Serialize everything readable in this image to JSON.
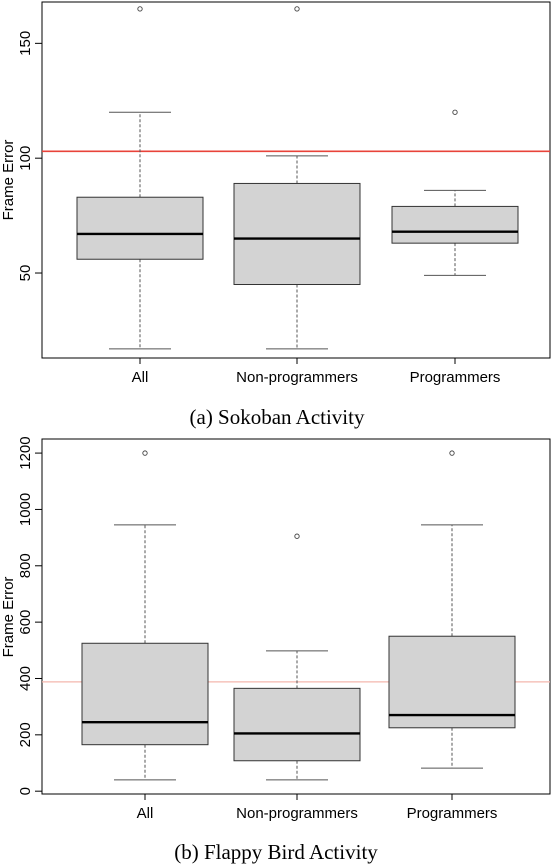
{
  "chart_data": [
    {
      "type": "box",
      "caption": "(a) Sokoban Activity",
      "ylabel": "Frame Error",
      "categories": [
        "All",
        "Non-programmers",
        "Programmers"
      ],
      "ylim": [
        13,
        168
      ],
      "yticks": [
        50,
        100,
        150
      ],
      "boxes": [
        {
          "category": "All",
          "whisker_low": 17,
          "q1": 56,
          "median": 67,
          "q3": 83,
          "whisker_high": 120,
          "outliers": [
            165
          ]
        },
        {
          "category": "Non-programmers",
          "whisker_low": 17,
          "q1": 45,
          "median": 65,
          "q3": 89,
          "whisker_high": 101,
          "outliers": [
            165
          ]
        },
        {
          "category": "Programmers",
          "whisker_low": 49,
          "q1": 63,
          "median": 68,
          "q3": 79,
          "whisker_high": 86,
          "outliers": [
            120
          ]
        }
      ],
      "reference_line": {
        "value": 103,
        "color": "#e8433a"
      },
      "grid": false
    },
    {
      "type": "box",
      "caption": "(b) Flappy Bird Activity",
      "ylabel": "Frame Error",
      "categories": [
        "All",
        "Non-programmers",
        "Programmers"
      ],
      "ylim": [
        -10,
        1250
      ],
      "yticks": [
        0,
        200,
        400,
        600,
        800,
        1000,
        1200
      ],
      "boxes": [
        {
          "category": "All",
          "whisker_low": 40,
          "q1": 165,
          "median": 245,
          "q3": 525,
          "whisker_high": 945,
          "outliers": [
            1200
          ]
        },
        {
          "category": "Non-programmers",
          "whisker_low": 40,
          "q1": 108,
          "median": 205,
          "q3": 365,
          "whisker_high": 498,
          "outliers": [
            905
          ]
        },
        {
          "category": "Programmers",
          "whisker_low": 82,
          "q1": 225,
          "median": 270,
          "q3": 550,
          "whisker_high": 945,
          "outliers": [
            1200
          ]
        }
      ],
      "reference_line": {
        "value": 388,
        "color": "#f4b7ae"
      },
      "grid": false
    }
  ],
  "style": {
    "box_fill": "#d3d3d3",
    "stroke": "#000000",
    "whisker_color": "#555555"
  }
}
